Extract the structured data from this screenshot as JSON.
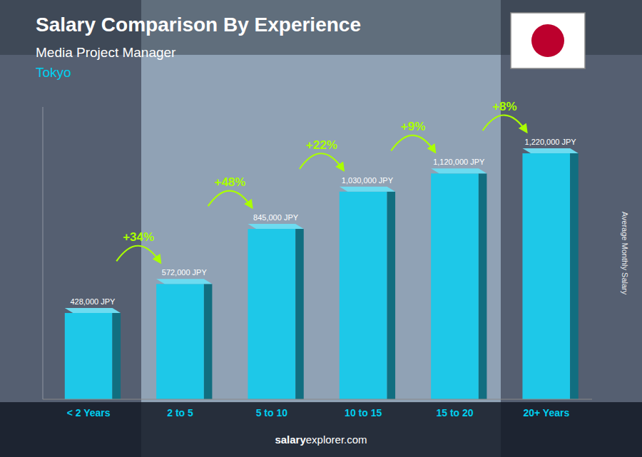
{
  "chart_data": {
    "type": "bar",
    "title": "Salary Comparison By Experience",
    "subtitle": [
      "Media Project Manager",
      "Tokyo"
    ],
    "ylabel": "Average Monthly Salary",
    "footer": [
      "salary",
      "explorer.com"
    ],
    "categories": [
      "< 2 Years",
      "2 to 5",
      "5 to 10",
      "10 to 15",
      "15 to 20",
      "20+ Years"
    ],
    "values": [
      428000,
      572000,
      845000,
      1030000,
      1120000,
      1220000
    ],
    "value_labels": [
      "428,000 JPY",
      "572,000 JPY",
      "845,000 JPY",
      "1,030,000 JPY",
      "1,120,000 JPY",
      "1,220,000 JPY"
    ],
    "data_labels": true,
    "color": "#1EC8E8",
    "ylim": [
      0,
      1450000
    ],
    "tick_labels": "x",
    "grid": false,
    "annotations": [
      {
        "text": "+34%",
        "from": "< 2 Years",
        "to": "2 to 5"
      },
      {
        "text": "+48%",
        "from": "2 to 5",
        "to": "5 to 10"
      },
      {
        "text": "+22%",
        "from": "5 to 10",
        "to": "10 to 15"
      },
      {
        "text": "+9%",
        "from": "10 to 15",
        "to": "15 to 20"
      },
      {
        "text": "+8%",
        "from": "15 to 20",
        "to": "20+ Years"
      }
    ]
  }
}
